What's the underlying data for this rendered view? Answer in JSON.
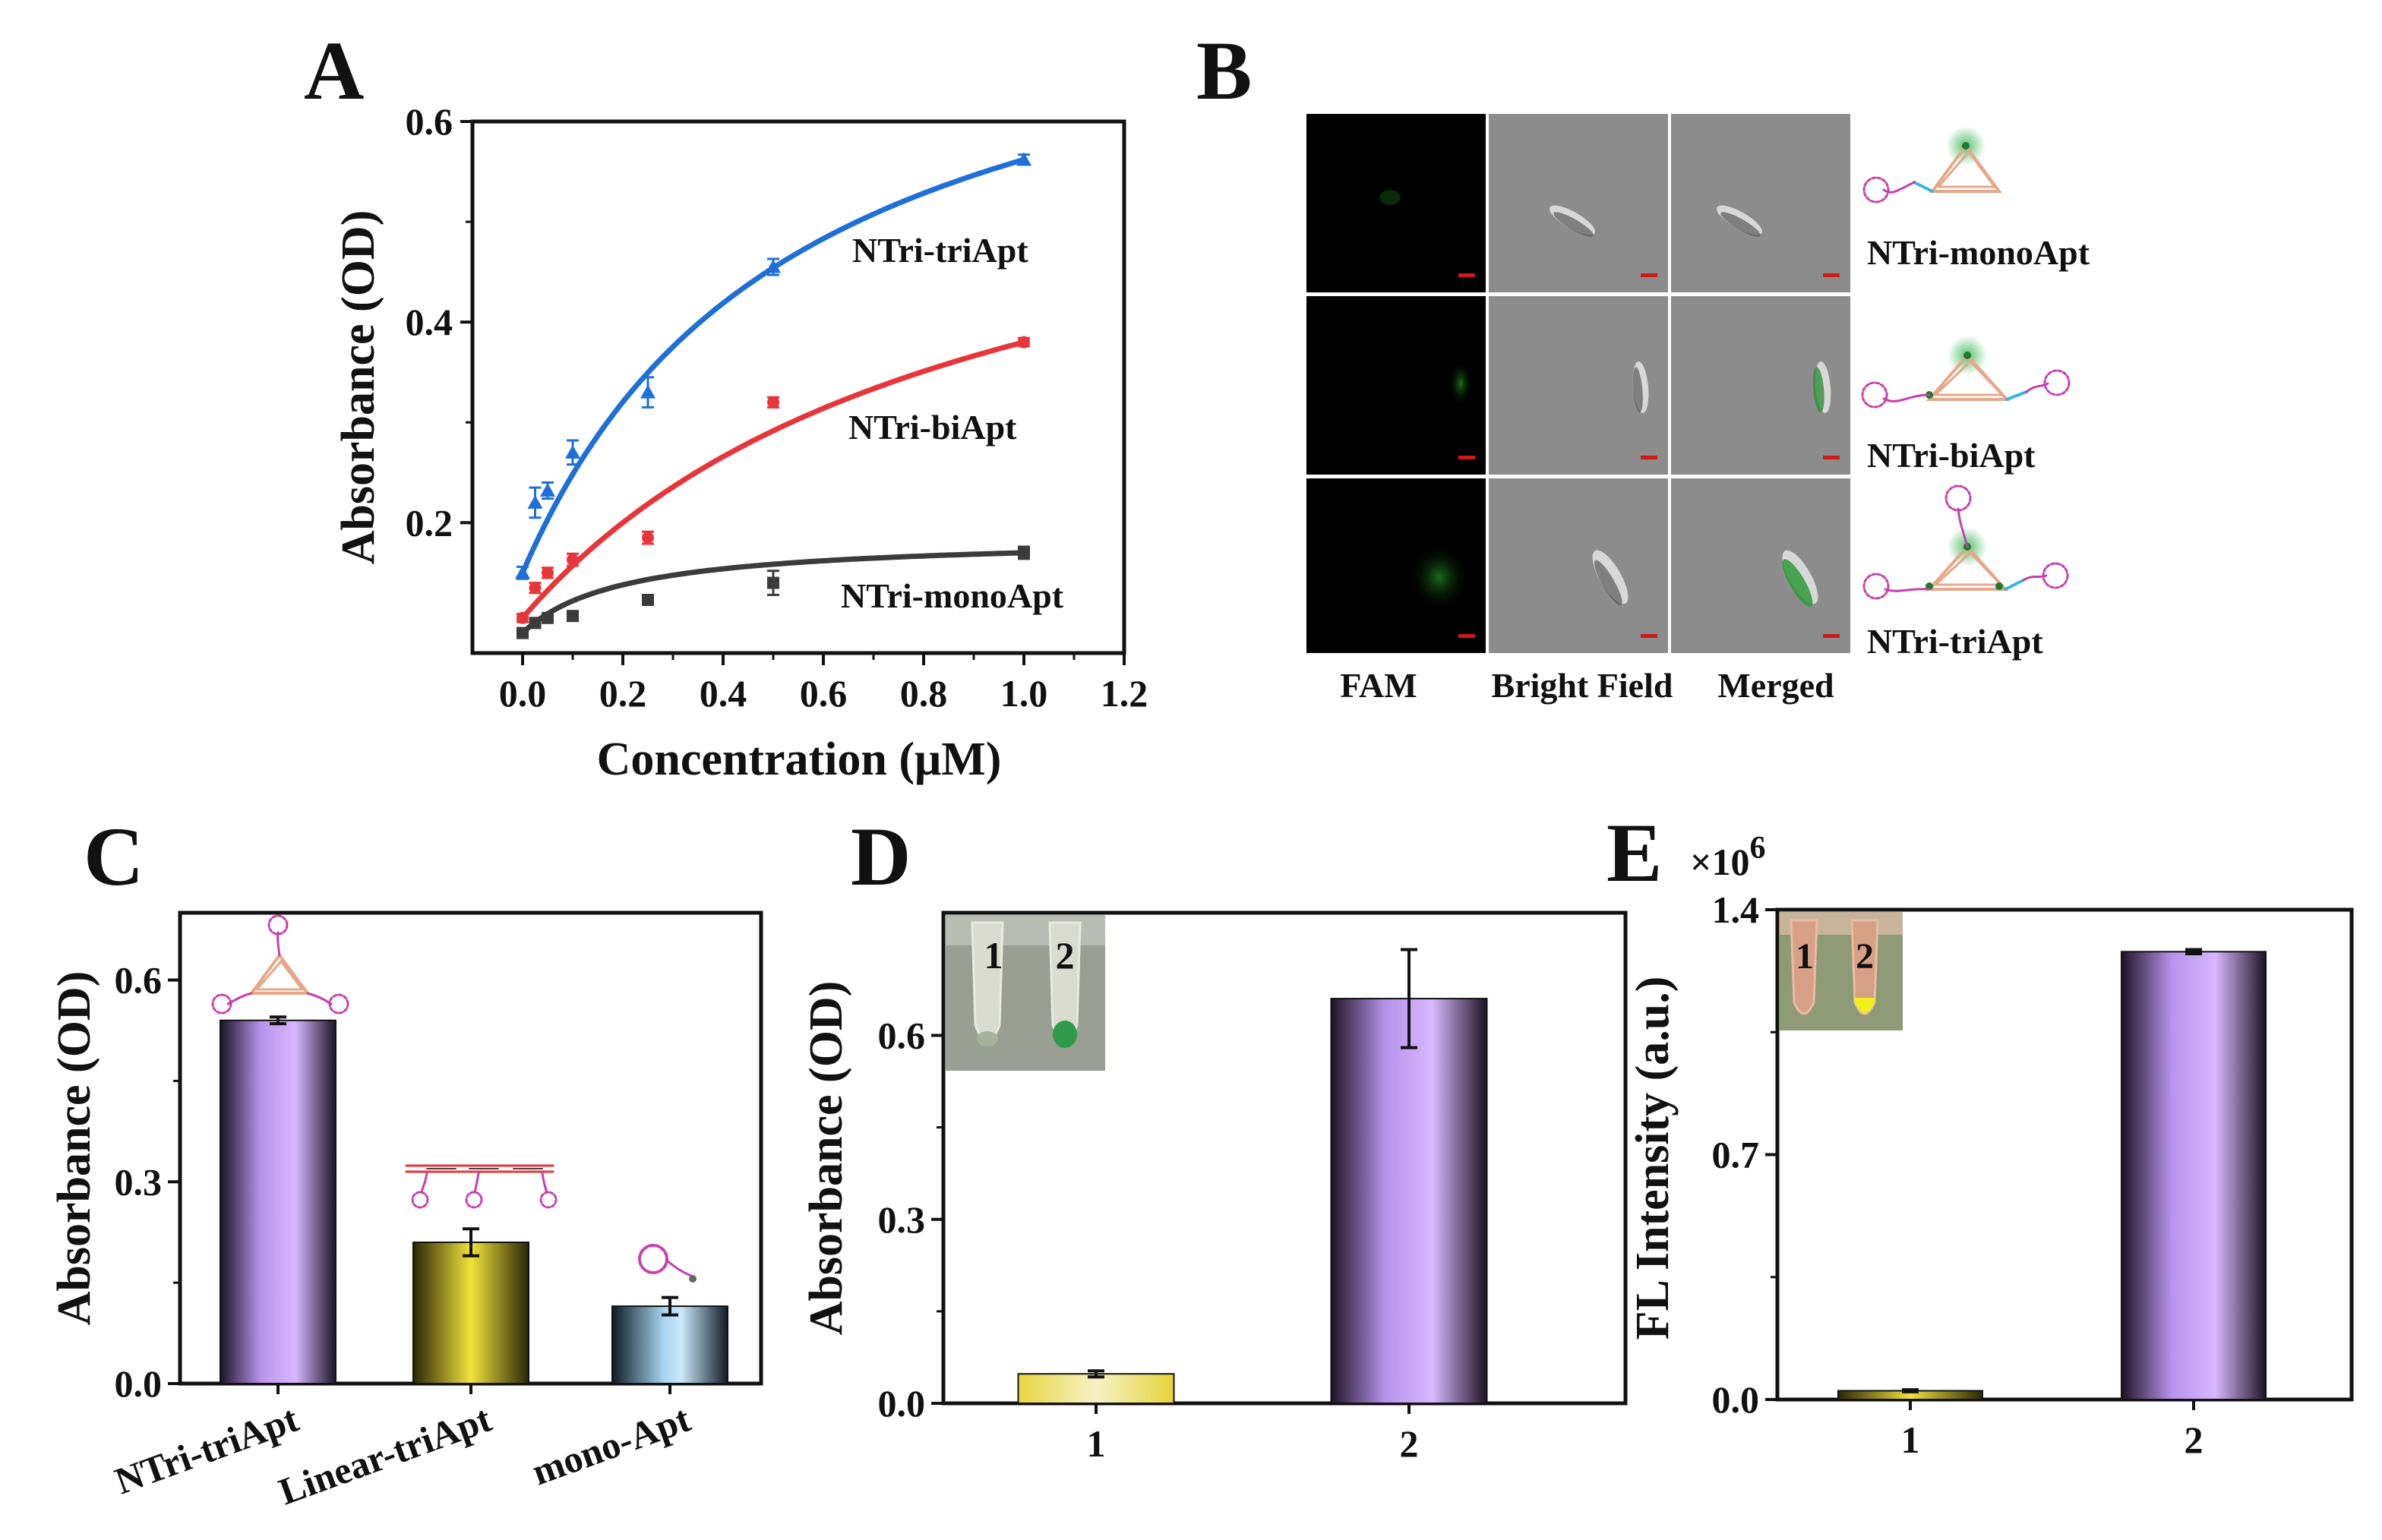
{
  "colors": {
    "blue": "#1f6fd8",
    "red": "#e8353a",
    "dark": "#3b3b3b",
    "purple": "#c9a5ff",
    "yellow": "#e6d63a",
    "lightblue": "#a9d6f2",
    "pink": "#c83fae",
    "triangle": "#e6a88a",
    "cyan": "#39b4e6",
    "green": "#2fb34a"
  },
  "chart_data": [
    {
      "panel": "A",
      "type": "scatter",
      "xlabel": "Concentration (μM)",
      "ylabel": "Absorbance (OD)",
      "xlim": [
        -0.1,
        1.2
      ],
      "ylim": [
        0.07,
        0.6
      ],
      "xticks": [
        "0.0",
        "0.2",
        "0.4",
        "0.6",
        "0.8",
        "1.0",
        "1.2"
      ],
      "yticks": [
        "0.2",
        "0.4",
        "0.6"
      ],
      "series": [
        {
          "name": "NTri-triApt",
          "color": "blue",
          "x": [
            0,
            0.025,
            0.05,
            0.1,
            0.25,
            0.5,
            1.0
          ],
          "y": [
            0.15,
            0.22,
            0.232,
            0.27,
            0.33,
            0.455,
            0.562
          ],
          "err": [
            0.006,
            0.015,
            0.008,
            0.012,
            0.015,
            0.008,
            0.005
          ],
          "marker": "triangle"
        },
        {
          "name": "NTri-biApt",
          "color": "red",
          "x": [
            0,
            0.025,
            0.05,
            0.1,
            0.25,
            0.5,
            1.0
          ],
          "y": [
            0.105,
            0.135,
            0.15,
            0.163,
            0.185,
            0.32,
            0.38
          ],
          "err": [
            0.004,
            0.005,
            0.005,
            0.006,
            0.006,
            0.005,
            0.004
          ],
          "marker": "circle"
        },
        {
          "name": "NTri-monoApt",
          "color": "dark",
          "x": [
            0,
            0.025,
            0.05,
            0.1,
            0.25,
            0.5,
            1.0
          ],
          "y": [
            0.09,
            0.1,
            0.105,
            0.107,
            0.123,
            0.14,
            0.17
          ],
          "err": [
            0.004,
            0.004,
            0.004,
            0.004,
            0.004,
            0.012,
            0.006
          ],
          "marker": "square"
        }
      ]
    },
    {
      "panel": "C",
      "type": "bar",
      "ylabel": "Absorbance (OD)",
      "ylim": [
        0,
        0.7
      ],
      "yticks": [
        "0.0",
        "0.3",
        "0.6"
      ],
      "categories": [
        "NTri-triApt",
        "Linear-triApt",
        "mono-Apt"
      ],
      "values": [
        0.54,
        0.21,
        0.115
      ],
      "errors": [
        0.005,
        0.02,
        0.013
      ],
      "colors": [
        "purple",
        "yellow",
        "lightblue"
      ]
    },
    {
      "panel": "D",
      "type": "bar",
      "ylabel": "Absorbance (OD)",
      "ylim": [
        0,
        0.8
      ],
      "yticks": [
        "0.0",
        "0.3",
        "0.6"
      ],
      "categories": [
        "1",
        "2"
      ],
      "values": [
        0.048,
        0.66
      ],
      "errors": [
        0.005,
        0.08
      ],
      "colors": [
        "yellow",
        "purple"
      ],
      "inset_labels": [
        "1",
        "2"
      ]
    },
    {
      "panel": "E",
      "type": "bar",
      "ylabel": "FL Intensity (a.u.)",
      "scale_base": "×10",
      "scale_exp": "6",
      "ylim": [
        0,
        1.4
      ],
      "yticks": [
        "0.0",
        "0.7",
        "1.4"
      ],
      "categories": [
        "1",
        "2"
      ],
      "values": [
        0.025,
        1.28
      ],
      "errors": [
        0.003,
        0.006
      ],
      "colors": [
        "yellow",
        "purple"
      ],
      "inset_labels": [
        "1",
        "2"
      ]
    }
  ],
  "panels": {
    "A": "A",
    "B": "B",
    "C": "C",
    "D": "D",
    "E": "E"
  },
  "micrographs": {
    "columns": [
      "FAM",
      "Bright Field",
      "Merged"
    ],
    "rows": [
      "NTri-monoApt",
      "NTri-biApt",
      "NTri-triApt"
    ]
  }
}
